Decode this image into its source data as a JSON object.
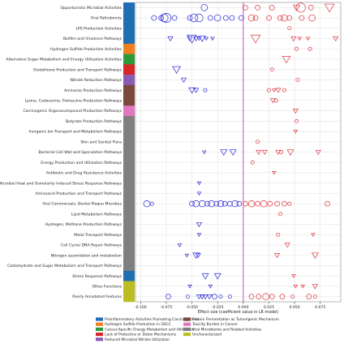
{
  "chart_data": {
    "type": "scatter",
    "xlabel": "Effect size (coefficient value in LR model)",
    "xlim": [
      -0.105,
      0.095
    ],
    "xticks": [
      -0.1,
      -0.075,
      -0.05,
      -0.025,
      0.0,
      0.025,
      0.05,
      0.075
    ],
    "xtick_labels": [
      "-0.100",
      "-0.075",
      "-0.050",
      "-0.025",
      "0.000",
      "0.025",
      "0.050",
      "0.075"
    ],
    "reference_line_x": 0.0,
    "rows": [
      {
        "label": "Opportunistic Microbial Activities",
        "category": 0
      },
      {
        "label": "Oral Pathobionts",
        "category": 0
      },
      {
        "label": "LPS Production Activities",
        "category": 0
      },
      {
        "label": "Biofilm and Virulence Pathways",
        "category": 0
      },
      {
        "label": "Hydrogen Sulfide Production Activities",
        "category": 1
      },
      {
        "label": "Alternative Sugar Metabolism and Energy Utilization Activities",
        "category": 2
      },
      {
        "label": "Glutathione Production and Transport Pathways",
        "category": 3
      },
      {
        "label": "Nitrate Reduction Pathways",
        "category": 4
      },
      {
        "label": "Ammonia Production Pathways",
        "category": 5
      },
      {
        "label": "Lysine, Cadaverine, Putrescine Production Pathways",
        "category": 5
      },
      {
        "label": "Carcinogenic Organocompound Production Pathways",
        "category": 6
      },
      {
        "label": "Butyrate Production Pathways",
        "category": 7
      },
      {
        "label": "Inorganic Ion Transport and Metabolism Pathways",
        "category": 7
      },
      {
        "label": "Skin and Genital Flora",
        "category": 7
      },
      {
        "label": "Bacterial Cell Wall and Sporulation Pathways",
        "category": 7
      },
      {
        "label": "Energy Production and Utilization Pathways",
        "category": 7
      },
      {
        "label": "Antibiotic and Drug Resistance Activities",
        "category": 7
      },
      {
        "label": "Microbial Heat and Osmolarity Induced Stress Response Pathways",
        "category": 7
      },
      {
        "label": "Aminoacid Production and Transport Pathways",
        "category": 7
      },
      {
        "label": "Oral Commensals, Dental Plaque Microbes",
        "category": 7
      },
      {
        "label": "Lipid Metabolism Pathways",
        "category": 7
      },
      {
        "label": "Hydrogen, Methane Production Pathways",
        "category": 7
      },
      {
        "label": "Metal Transport Pathways",
        "category": 7
      },
      {
        "label": "Cell Cycle/ DNA Repair Pathways",
        "category": 7
      },
      {
        "label": "Nitrogen assimilation and metabolism",
        "category": 7
      },
      {
        "label": "Carbohydrate and Sugar Metabolism and Transport Pathways",
        "category": 7
      },
      {
        "label": "Stress Response Pathways",
        "category": 0
      },
      {
        "label": "Other Functions",
        "category": 8
      },
      {
        "label": "Poorly Annotated Features",
        "category": 8
      }
    ],
    "category_colors": [
      "#1f6fb2",
      "#f07f1e",
      "#2a9a3a",
      "#d62728",
      "#8a5bb5",
      "#7a4a3a",
      "#e077c0",
      "#7f7f7f",
      "#bcbd22"
    ],
    "legend": [
      {
        "label": "Proinflammatory Activities Promoting Carcinogenesis",
        "color": "#1f6fb2"
      },
      {
        "label": "Hydrogen Sulfide Production in OSCC",
        "color": "#f07f1e"
      },
      {
        "label": "Cancer-Specific Energy Metabolism and Utilization",
        "color": "#2a9a3a"
      },
      {
        "label": "Lack of Protective or Detox Mechanisms",
        "color": "#d62728"
      },
      {
        "label": "Reduced Microbial Nitrate Utilization",
        "color": "#8a5bb5"
      },
      {
        "label": "Protein Fermentation as Tumorigenic Mechanism",
        "color": "#7a4a3a"
      },
      {
        "label": "Toxicity Burden in Cancer",
        "color": "#e077c0"
      },
      {
        "label": "Oral Microbiome and Related Activities",
        "color": "#7f7f7f"
      },
      {
        "label": "Uncharacterized",
        "color": "#bcbd22"
      }
    ],
    "points": [
      {
        "row": 0,
        "x": -0.038,
        "shape": "circle",
        "size": 3
      },
      {
        "row": 0,
        "x": 0.002,
        "shape": "circle",
        "size": 2
      },
      {
        "row": 0,
        "x": 0.014,
        "shape": "circle",
        "size": 2
      },
      {
        "row": 0,
        "x": 0.028,
        "shape": "circle",
        "size": 2
      },
      {
        "row": 0,
        "x": 0.052,
        "shape": "triangle",
        "size": 3
      },
      {
        "row": 0,
        "x": 0.056,
        "shape": "circle",
        "size": 5
      },
      {
        "row": 0,
        "x": 0.066,
        "shape": "circle",
        "size": 2
      },
      {
        "row": 0,
        "x": 0.084,
        "shape": "triangle",
        "size": 5
      },
      {
        "row": 1,
        "x": -0.087,
        "shape": "circle",
        "size": 2
      },
      {
        "row": 1,
        "x": -0.08,
        "shape": "circle",
        "size": 2
      },
      {
        "row": 1,
        "x": -0.077,
        "shape": "circle",
        "size": 4
      },
      {
        "row": 1,
        "x": -0.075,
        "shape": "circle",
        "size": 5
      },
      {
        "row": 1,
        "x": -0.067,
        "shape": "circle",
        "size": 2
      },
      {
        "row": 1,
        "x": -0.052,
        "shape": "circle",
        "size": 2
      },
      {
        "row": 1,
        "x": -0.048,
        "shape": "circle",
        "size": 4
      },
      {
        "row": 1,
        "x": -0.043,
        "shape": "circle",
        "size": 4
      },
      {
        "row": 1,
        "x": -0.032,
        "shape": "circle",
        "size": 2
      },
      {
        "row": 1,
        "x": -0.025,
        "shape": "circle",
        "size": 3
      },
      {
        "row": 1,
        "x": -0.017,
        "shape": "circle",
        "size": 2
      },
      {
        "row": 1,
        "x": -0.011,
        "shape": "circle",
        "size": 2
      },
      {
        "row": 1,
        "x": -0.002,
        "shape": "circle",
        "size": 2
      },
      {
        "row": 1,
        "x": 0.008,
        "shape": "circle",
        "size": 3
      },
      {
        "row": 1,
        "x": 0.012,
        "shape": "circle",
        "size": 2
      },
      {
        "row": 1,
        "x": 0.025,
        "shape": "circle",
        "size": 2
      },
      {
        "row": 1,
        "x": 0.036,
        "shape": "circle",
        "size": 2
      },
      {
        "row": 1,
        "x": 0.04,
        "shape": "circle",
        "size": 3
      },
      {
        "row": 1,
        "x": 0.045,
        "shape": "circle",
        "size": 2
      },
      {
        "row": 1,
        "x": 0.057,
        "shape": "circle",
        "size": 2
      },
      {
        "row": 1,
        "x": 0.067,
        "shape": "circle",
        "size": 3
      },
      {
        "row": 2,
        "x": 0.045,
        "shape": "circle",
        "size": 1
      },
      {
        "row": 3,
        "x": -0.071,
        "shape": "triangle",
        "size": 2
      },
      {
        "row": 3,
        "x": -0.052,
        "shape": "triangle",
        "size": 2
      },
      {
        "row": 3,
        "x": -0.05,
        "shape": "triangle",
        "size": 5
      },
      {
        "row": 3,
        "x": -0.046,
        "shape": "triangle",
        "size": 2
      },
      {
        "row": 3,
        "x": -0.043,
        "shape": "triangle",
        "size": 1
      },
      {
        "row": 3,
        "x": -0.04,
        "shape": "triangle",
        "size": 3
      },
      {
        "row": 3,
        "x": -0.036,
        "shape": "triangle",
        "size": 1
      },
      {
        "row": 3,
        "x": -0.03,
        "shape": "triangle",
        "size": 1
      },
      {
        "row": 3,
        "x": 0.012,
        "shape": "triangle",
        "size": 5
      },
      {
        "row": 3,
        "x": 0.049,
        "shape": "triangle",
        "size": 2
      },
      {
        "row": 3,
        "x": 0.055,
        "shape": "triangle",
        "size": 1
      },
      {
        "row": 3,
        "x": 0.063,
        "shape": "triangle",
        "size": 1
      },
      {
        "row": 3,
        "x": 0.09,
        "shape": "triangle",
        "size": 2
      },
      {
        "row": 4,
        "x": 0.052,
        "shape": "circle",
        "size": 1
      },
      {
        "row": 4,
        "x": 0.065,
        "shape": "circle",
        "size": 1
      },
      {
        "row": 5,
        "x": 0.042,
        "shape": "triangle",
        "size": 4
      },
      {
        "row": 6,
        "x": -0.065,
        "shape": "triangle",
        "size": 4
      },
      {
        "row": 6,
        "x": 0.028,
        "shape": "circle",
        "size": 1
      },
      {
        "row": 7,
        "x": -0.058,
        "shape": "triangle",
        "size": 2
      },
      {
        "row": 7,
        "x": 0.053,
        "shape": "circle",
        "size": 1
      },
      {
        "row": 8,
        "x": -0.05,
        "shape": "triangle",
        "size": 3
      },
      {
        "row": 8,
        "x": -0.046,
        "shape": "triangle",
        "size": 2
      },
      {
        "row": 8,
        "x": -0.037,
        "shape": "circle",
        "size": 1
      },
      {
        "row": 8,
        "x": 0.025,
        "shape": "circle",
        "size": 1
      },
      {
        "row": 8,
        "x": 0.03,
        "shape": "triangle",
        "size": 1
      },
      {
        "row": 8,
        "x": 0.034,
        "shape": "triangle",
        "size": 2
      },
      {
        "row": 8,
        "x": 0.04,
        "shape": "circle",
        "size": 1
      },
      {
        "row": 9,
        "x": 0.029,
        "shape": "triangle",
        "size": 2
      },
      {
        "row": 9,
        "x": 0.032,
        "shape": "circle",
        "size": 1
      },
      {
        "row": 10,
        "x": 0.051,
        "shape": "triangle",
        "size": 2
      },
      {
        "row": 11,
        "x": 0.052,
        "shape": "circle",
        "size": 1
      },
      {
        "row": 12,
        "x": 0.051,
        "shape": "triangle",
        "size": 1
      },
      {
        "row": 13,
        "x": 0.014,
        "shape": "circle",
        "size": 1
      },
      {
        "row": 14,
        "x": -0.038,
        "shape": "triangle",
        "size": 1
      },
      {
        "row": 14,
        "x": -0.019,
        "shape": "triangle",
        "size": 3
      },
      {
        "row": 14,
        "x": -0.01,
        "shape": "triangle",
        "size": 3
      },
      {
        "row": 14,
        "x": 0.015,
        "shape": "triangle",
        "size": 2
      },
      {
        "row": 14,
        "x": 0.021,
        "shape": "triangle",
        "size": 2
      },
      {
        "row": 14,
        "x": 0.034,
        "shape": "triangle",
        "size": 2
      },
      {
        "row": 14,
        "x": 0.037,
        "shape": "circle",
        "size": 1
      },
      {
        "row": 14,
        "x": 0.046,
        "shape": "triangle",
        "size": 3
      },
      {
        "row": 14,
        "x": 0.073,
        "shape": "triangle",
        "size": 2
      },
      {
        "row": 15,
        "x": 0.009,
        "shape": "circle",
        "size": 1
      },
      {
        "row": 16,
        "x": 0.03,
        "shape": "triangle",
        "size": 1
      },
      {
        "row": 17,
        "x": -0.043,
        "shape": "triangle",
        "size": 1
      },
      {
        "row": 18,
        "x": -0.043,
        "shape": "triangle",
        "size": 1
      },
      {
        "row": 19,
        "x": -0.094,
        "shape": "circle",
        "size": 3
      },
      {
        "row": 19,
        "x": -0.089,
        "shape": "circle",
        "size": 1
      },
      {
        "row": 19,
        "x": -0.05,
        "shape": "circle",
        "size": 2
      },
      {
        "row": 19,
        "x": -0.046,
        "shape": "circle",
        "size": 3
      },
      {
        "row": 19,
        "x": -0.04,
        "shape": "circle",
        "size": 3
      },
      {
        "row": 19,
        "x": -0.035,
        "shape": "circle",
        "size": 2
      },
      {
        "row": 19,
        "x": -0.031,
        "shape": "circle",
        "size": 3
      },
      {
        "row": 19,
        "x": -0.026,
        "shape": "circle",
        "size": 2
      },
      {
        "row": 19,
        "x": -0.022,
        "shape": "circle",
        "size": 3
      },
      {
        "row": 19,
        "x": -0.018,
        "shape": "circle",
        "size": 2
      },
      {
        "row": 19,
        "x": -0.013,
        "shape": "circle",
        "size": 2
      },
      {
        "row": 19,
        "x": -0.008,
        "shape": "circle",
        "size": 3
      },
      {
        "row": 19,
        "x": -0.004,
        "shape": "circle",
        "size": 2
      },
      {
        "row": 19,
        "x": 0.002,
        "shape": "circle",
        "size": 2
      },
      {
        "row": 19,
        "x": 0.008,
        "shape": "circle",
        "size": 3
      },
      {
        "row": 19,
        "x": 0.014,
        "shape": "circle",
        "size": 2
      },
      {
        "row": 19,
        "x": 0.02,
        "shape": "circle",
        "size": 3
      },
      {
        "row": 19,
        "x": 0.026,
        "shape": "circle",
        "size": 2
      },
      {
        "row": 19,
        "x": 0.033,
        "shape": "circle",
        "size": 2
      },
      {
        "row": 19,
        "x": 0.04,
        "shape": "circle",
        "size": 2
      },
      {
        "row": 19,
        "x": 0.045,
        "shape": "circle",
        "size": 1
      },
      {
        "row": 19,
        "x": 0.082,
        "shape": "circle",
        "size": 2
      },
      {
        "row": 20,
        "x": 0.036,
        "shape": "circle",
        "size": 1
      },
      {
        "row": 21,
        "x": -0.043,
        "shape": "triangle",
        "size": 2
      },
      {
        "row": 22,
        "x": -0.043,
        "shape": "triangle",
        "size": 1
      },
      {
        "row": 22,
        "x": 0.034,
        "shape": "circle",
        "size": 1
      },
      {
        "row": 22,
        "x": 0.068,
        "shape": "triangle",
        "size": 1
      },
      {
        "row": 23,
        "x": -0.062,
        "shape": "triangle",
        "size": 1
      },
      {
        "row": 23,
        "x": 0.043,
        "shape": "triangle",
        "size": 2
      },
      {
        "row": 24,
        "x": -0.055,
        "shape": "triangle",
        "size": 1
      },
      {
        "row": 24,
        "x": -0.046,
        "shape": "triangle",
        "size": 3
      },
      {
        "row": 24,
        "x": -0.044,
        "shape": "triangle",
        "size": 2
      },
      {
        "row": 24,
        "x": 0.033,
        "shape": "triangle",
        "size": 2
      },
      {
        "row": 24,
        "x": 0.07,
        "shape": "triangle",
        "size": 3
      },
      {
        "row": 26,
        "x": -0.037,
        "shape": "triangle",
        "size": 3
      },
      {
        "row": 26,
        "x": -0.025,
        "shape": "triangle",
        "size": 3
      },
      {
        "row": 26,
        "x": 0.049,
        "shape": "triangle",
        "size": 1
      },
      {
        "row": 27,
        "x": -0.052,
        "shape": "triangle",
        "size": 1
      },
      {
        "row": 27,
        "x": -0.032,
        "shape": "triangle",
        "size": 1
      },
      {
        "row": 27,
        "x": 0.051,
        "shape": "triangle",
        "size": 1
      },
      {
        "row": 27,
        "x": 0.058,
        "shape": "triangle",
        "size": 1
      },
      {
        "row": 27,
        "x": 0.07,
        "shape": "triangle",
        "size": 2
      },
      {
        "row": 28,
        "x": -0.073,
        "shape": "circle",
        "size": 2
      },
      {
        "row": 28,
        "x": -0.054,
        "shape": "circle",
        "size": 1
      },
      {
        "row": 28,
        "x": -0.043,
        "shape": "triangle",
        "size": 2
      },
      {
        "row": 28,
        "x": -0.04,
        "shape": "triangle",
        "size": 2
      },
      {
        "row": 28,
        "x": -0.037,
        "shape": "triangle",
        "size": 2
      },
      {
        "row": 28,
        "x": -0.033,
        "shape": "triangle",
        "size": 2
      },
      {
        "row": 28,
        "x": -0.028,
        "shape": "circle",
        "size": 2
      },
      {
        "row": 28,
        "x": -0.022,
        "shape": "circle",
        "size": 1
      },
      {
        "row": 28,
        "x": -0.013,
        "shape": "circle",
        "size": 1
      },
      {
        "row": 28,
        "x": 0.008,
        "shape": "circle",
        "size": 2
      },
      {
        "row": 28,
        "x": 0.015,
        "shape": "circle",
        "size": 2
      },
      {
        "row": 28,
        "x": 0.022,
        "shape": "circle",
        "size": 3
      },
      {
        "row": 28,
        "x": 0.028,
        "shape": "circle",
        "size": 2
      },
      {
        "row": 28,
        "x": 0.038,
        "shape": "circle",
        "size": 2
      },
      {
        "row": 28,
        "x": 0.048,
        "shape": "circle",
        "size": 1
      },
      {
        "row": 28,
        "x": 0.064,
        "shape": "circle",
        "size": 2
      },
      {
        "row": 28,
        "x": 0.07,
        "shape": "circle",
        "size": 1
      }
    ],
    "colors": {
      "negative": "#2b2bd6",
      "positive": "#e0353d",
      "zero_line": "#b040c0",
      "grid": "#e4e4e4"
    }
  }
}
